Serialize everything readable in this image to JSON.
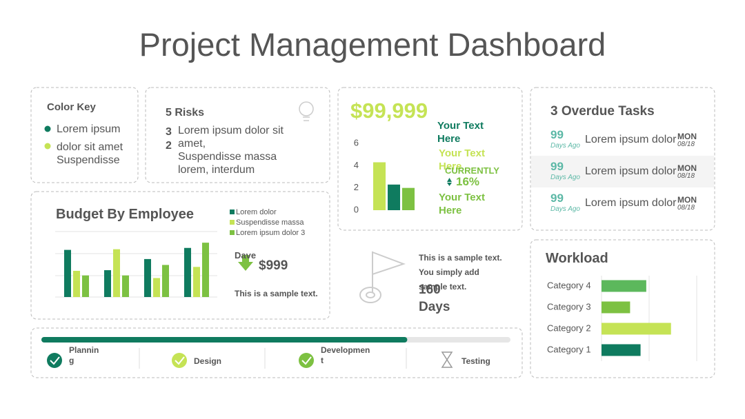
{
  "title": "Project Management Dashboard",
  "color_key": {
    "title": "Color Key",
    "items": [
      "Lorem ipsum",
      "dolor sit amet Suspendisse"
    ]
  },
  "risks": {
    "title": "5 Risks",
    "items": [
      {
        "count": "3",
        "text": "Lorem ipsum dolor sit amet,"
      },
      {
        "count": "2",
        "text": "Suspendisse massa lorem, interdum"
      }
    ]
  },
  "kpi": {
    "amount": "$99,999",
    "labels": [
      "Your Text Here",
      "Your Text Here",
      "Your Text Here"
    ],
    "status": "CURRENTLY",
    "change": "16%"
  },
  "overdue": {
    "title": "3 Overdue Tasks",
    "rows": [
      {
        "count": "99",
        "ago": "Days Ago",
        "text": "Lorem ipsum dolor",
        "day": "MON",
        "date": "08/18"
      },
      {
        "count": "99",
        "ago": "Days Ago",
        "text": "Lorem ipsum dolor",
        "day": "MON",
        "date": "08/18"
      },
      {
        "count": "99",
        "ago": "Days Ago",
        "text": "Lorem ipsum dolor",
        "day": "MON",
        "date": "08/18"
      }
    ]
  },
  "budget_note": {
    "name": "Dave",
    "amount": "$999",
    "text": "This is a sample text."
  },
  "milestone": {
    "text": "This is a sample text. You simply add sample text.",
    "days": "160 Days"
  },
  "progress": {
    "value": 78,
    "color": "#0f7b5f",
    "stages": [
      "Planning",
      "Design",
      "Development",
      "Testing"
    ]
  },
  "chart_data": [
    {
      "type": "bar",
      "title": "Budget By Employee",
      "categories": [
        null,
        null,
        null,
        null
      ],
      "ylim": [
        0,
        100
      ],
      "series": [
        {
          "name": "Lorem dolor",
          "color": "#0f7b5f",
          "values": [
            72,
            41,
            58,
            75
          ]
        },
        {
          "name": "Suspendisse massa",
          "color": "#c5e355",
          "values": [
            40,
            73,
            29,
            46
          ]
        },
        {
          "name": "Lorem ipsum dolor 3",
          "color": "#7dc142",
          "values": [
            33,
            33,
            49,
            83
          ]
        }
      ]
    },
    {
      "type": "bar",
      "categories": [
        null,
        null,
        null
      ],
      "values": [
        4.3,
        2.3,
        2.0
      ],
      "colors": [
        "#c5e355",
        "#0f7b5f",
        "#7dc142"
      ],
      "ylim": [
        0,
        6
      ],
      "yticks": [
        0,
        2,
        4,
        6
      ]
    },
    {
      "type": "barh",
      "title": "Workload",
      "categories": [
        "Category 1",
        "Category 2",
        "Category 3",
        "Category 4"
      ],
      "values": [
        41,
        73,
        30,
        47
      ],
      "colors": [
        "#0f7b5f",
        "#c5e355",
        "#7dc142",
        "#5cb85c"
      ],
      "xlim": [
        0,
        100
      ]
    }
  ]
}
